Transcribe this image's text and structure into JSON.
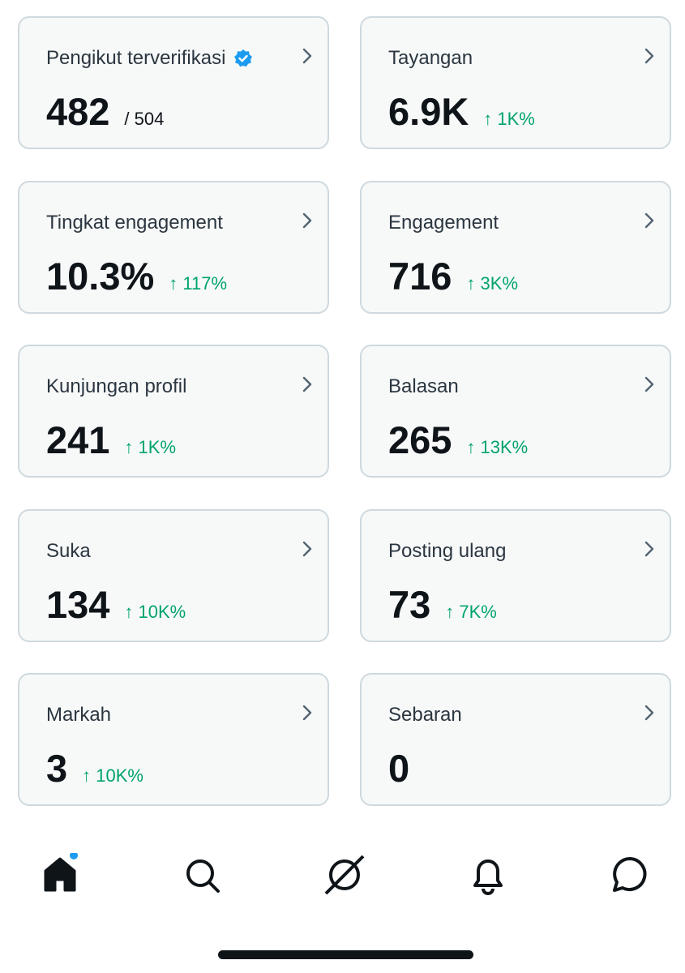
{
  "cards": [
    {
      "label": "Pengikut terverifikasi",
      "value": "482",
      "suffix": "/ 504",
      "verified": true
    },
    {
      "label": "Tayangan",
      "value": "6.9K",
      "change": "↑ 1K%"
    },
    {
      "label": "Tingkat engagement",
      "value": "10.3%",
      "change": "↑ 117%"
    },
    {
      "label": "Engagement",
      "value": "716",
      "change": "↑ 3K%"
    },
    {
      "label": "Kunjungan profil",
      "value": "241",
      "change": "↑ 1K%"
    },
    {
      "label": "Balasan",
      "value": "265",
      "change": "↑ 13K%"
    },
    {
      "label": "Suka",
      "value": "134",
      "change": "↑ 10K%"
    },
    {
      "label": "Posting ulang",
      "value": "73",
      "change": "↑ 7K%"
    },
    {
      "label": "Markah",
      "value": "3",
      "change": "↑ 10K%"
    },
    {
      "label": "Sebaran",
      "value": "0"
    }
  ]
}
